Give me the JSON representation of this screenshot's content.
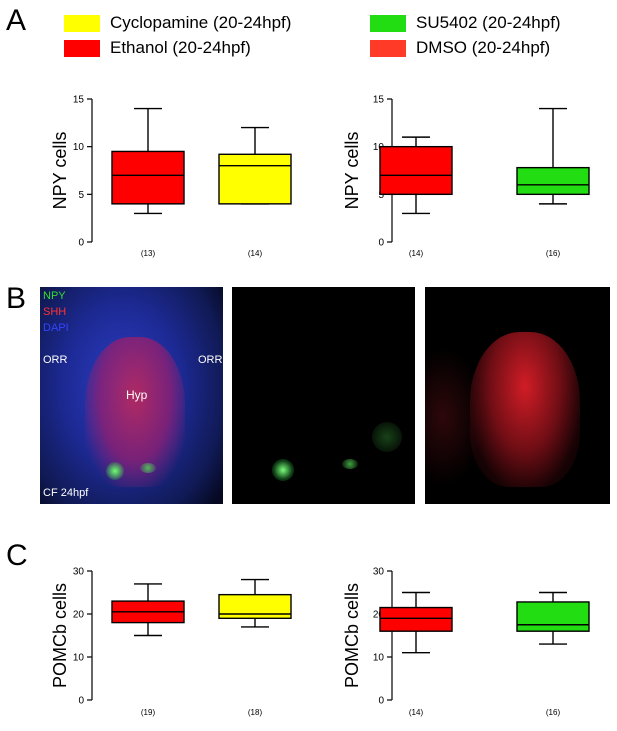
{
  "panels": {
    "a": "A",
    "b": "B",
    "c": "C"
  },
  "legend": [
    {
      "label": "Cyclopamine (20-24hpf)",
      "color": "#ffff00"
    },
    {
      "label": "SU5402 (20-24hpf)",
      "color": "#22dd11"
    },
    {
      "label": "Ethanol (20-24hpf)",
      "color": "#ff0000"
    },
    {
      "label": "DMSO (20-24hpf)",
      "color": "#ff3b28"
    }
  ],
  "microscopy": {
    "channel_labels": [
      {
        "text": "NPY",
        "color": "#33dd33"
      },
      {
        "text": "SHH",
        "color": "#ff3333"
      },
      {
        "text": "DAPI",
        "color": "#3344ff"
      }
    ],
    "orr_left": "ORR",
    "orr_right": "ORR",
    "hyp": "Hyp",
    "stage": "CF 24hpf"
  },
  "chart_data": [
    {
      "type": "box",
      "ylabel": "NPY cells",
      "ylim": [
        0,
        15
      ],
      "yticks": [
        0,
        5,
        10,
        15
      ],
      "categories": [
        "(13)",
        "(14)"
      ],
      "boxes": [
        {
          "min": 3,
          "q1": 4,
          "median": 7,
          "q3": 9.5,
          "max": 14,
          "color": "#ff0000"
        },
        {
          "min": 4,
          "q1": 4,
          "median": 8,
          "q3": 9.2,
          "max": 12,
          "color": "#ffff00"
        }
      ]
    },
    {
      "type": "box",
      "ylabel": "NPY cells",
      "ylim": [
        0,
        15
      ],
      "yticks": [
        0,
        5,
        10,
        15
      ],
      "categories": [
        "(14)",
        "(16)"
      ],
      "boxes": [
        {
          "min": 3,
          "q1": 5,
          "median": 7,
          "q3": 10,
          "max": 11,
          "color": "#ff0000"
        },
        {
          "min": 4,
          "q1": 5,
          "median": 6,
          "q3": 7.8,
          "max": 14,
          "color": "#22dd11"
        }
      ]
    },
    {
      "type": "box",
      "ylabel": "POMCb cells",
      "ylim": [
        0,
        30
      ],
      "yticks": [
        0,
        10,
        20,
        30
      ],
      "categories": [
        "(19)",
        "(18)"
      ],
      "boxes": [
        {
          "min": 15,
          "q1": 18,
          "median": 20.5,
          "q3": 23,
          "max": 27,
          "color": "#ff0000"
        },
        {
          "min": 17,
          "q1": 19,
          "median": 20,
          "q3": 24.5,
          "max": 28,
          "color": "#ffff00"
        }
      ]
    },
    {
      "type": "box",
      "ylabel": "POMCb cells",
      "ylim": [
        0,
        30
      ],
      "yticks": [
        0,
        10,
        20,
        30
      ],
      "categories": [
        "(14)",
        "(16)"
      ],
      "boxes": [
        {
          "min": 11,
          "q1": 16,
          "median": 19,
          "q3": 21.5,
          "max": 25,
          "color": "#ff0000"
        },
        {
          "min": 13,
          "q1": 16,
          "median": 17.5,
          "q3": 22.8,
          "max": 25,
          "color": "#22dd11"
        }
      ]
    }
  ]
}
